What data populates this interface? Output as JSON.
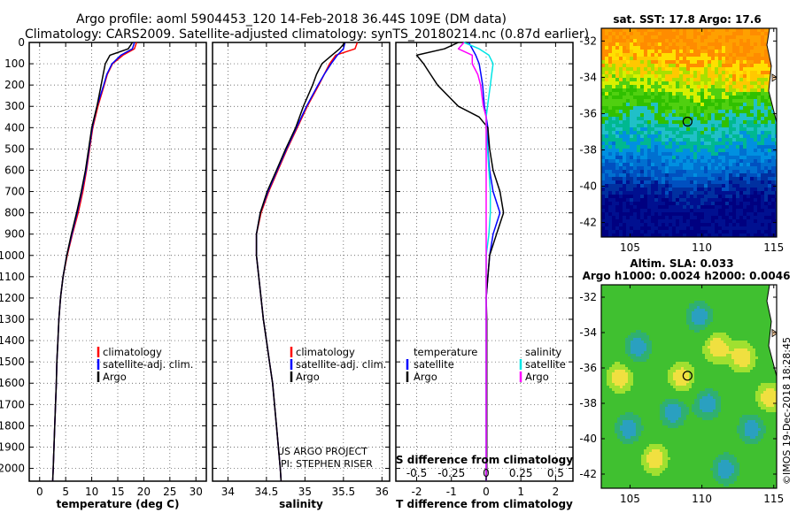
{
  "header": {
    "title_line1": "Argo profile: aoml 5904453_120 14-Feb-2018 36.44S 109E (DM data)",
    "title_line2": "Climatology: CARS2009. Satellite-adjusted climatology: synTS_20180214.nc (0.87d earlier)"
  },
  "colors": {
    "climatology": "#ff0000",
    "satellite": "#0000ff",
    "argo": "#000000",
    "s_satellite": "#00e5e5",
    "s_argo": "#ff00ff"
  },
  "chart_data": [
    {
      "type": "line",
      "id": "temperature",
      "xlabel": "temperature (deg C)",
      "xlim": [
        -2,
        32
      ],
      "ylim": [
        2060,
        0
      ],
      "xticks": [
        "0",
        "5",
        "10",
        "15",
        "20",
        "25",
        "30"
      ],
      "xtick_values": [
        0,
        5,
        10,
        15,
        20,
        25,
        30
      ],
      "yticks": [
        "0",
        "100",
        "200",
        "300",
        "400",
        "500",
        "600",
        "700",
        "800",
        "900",
        "1000",
        "1100",
        "1200",
        "1300",
        "1400",
        "1500",
        "1600",
        "1700",
        "1800",
        "1900",
        "2000"
      ],
      "depth": [
        0,
        30,
        60,
        100,
        150,
        200,
        300,
        400,
        500,
        600,
        700,
        800,
        900,
        1000,
        1100,
        1200,
        1300,
        1400,
        1500,
        1600,
        1800,
        2000,
        2060
      ],
      "series": [
        {
          "name": "climatology",
          "values": [
            18.6,
            18.2,
            16.0,
            14.0,
            13.0,
            12.4,
            11.2,
            10.2,
            9.6,
            9.0,
            8.3,
            7.4,
            6.3,
            5.3,
            4.5,
            4.0,
            3.7,
            3.5,
            3.3,
            3.2,
            2.9,
            2.6,
            2.5
          ]
        },
        {
          "name": "satellite-adj. clim.",
          "values": [
            18.2,
            17.8,
            15.6,
            13.9,
            12.9,
            12.3,
            11.0,
            10.1,
            9.5,
            8.9,
            8.1,
            7.2,
            6.2,
            5.2,
            4.5,
            4.0,
            3.7,
            3.5,
            3.3,
            3.2,
            2.9,
            2.6,
            2.5
          ]
        },
        {
          "name": "Argo",
          "values": [
            17.8,
            17.0,
            13.5,
            12.6,
            12.2,
            11.8,
            11.0,
            10.0,
            9.4,
            8.8,
            8.0,
            7.1,
            6.1,
            5.2,
            4.5,
            4.0,
            3.7,
            3.5,
            3.3,
            3.2,
            2.9,
            2.6,
            2.5
          ]
        }
      ],
      "legend": [
        "climatology",
        "satellite-adj. clim.",
        "Argo"
      ]
    },
    {
      "type": "line",
      "id": "salinity",
      "xlabel": "salinity",
      "xlim": [
        33.8,
        36.1
      ],
      "ylim": [
        2060,
        0
      ],
      "xticks": [
        "34",
        "34.5",
        "35",
        "35.5",
        "36"
      ],
      "xtick_values": [
        34,
        34.5,
        35,
        35.5,
        36
      ],
      "depth": [
        0,
        30,
        60,
        100,
        150,
        200,
        300,
        400,
        500,
        600,
        700,
        800,
        900,
        1000,
        1100,
        1200,
        1300,
        1400,
        1500,
        1600,
        1800,
        2000,
        2060
      ],
      "series": [
        {
          "name": "climatology",
          "values": [
            35.68,
            35.65,
            35.4,
            35.32,
            35.25,
            35.18,
            35.03,
            34.9,
            34.77,
            34.65,
            34.53,
            34.43,
            34.37,
            34.37,
            34.4,
            34.43,
            34.46,
            34.5,
            34.54,
            34.58,
            34.63,
            34.68,
            34.69
          ]
        },
        {
          "name": "satellite-adj. clim.",
          "values": [
            35.52,
            35.5,
            35.42,
            35.34,
            35.25,
            35.17,
            35.02,
            34.89,
            34.76,
            34.64,
            34.52,
            34.42,
            34.37,
            34.37,
            34.4,
            34.43,
            34.46,
            34.5,
            34.54,
            34.58,
            34.63,
            34.68,
            34.69
          ]
        },
        {
          "name": "Argo",
          "values": [
            35.52,
            35.45,
            35.35,
            35.22,
            35.15,
            35.1,
            34.98,
            34.88,
            34.75,
            34.63,
            34.51,
            34.42,
            34.37,
            34.37,
            34.4,
            34.43,
            34.46,
            34.5,
            34.54,
            34.58,
            34.63,
            34.68,
            34.69
          ]
        }
      ],
      "legend": [
        "climatology",
        "satellite-adj. clim.",
        "Argo"
      ],
      "annotations": [
        "US ARGO PROJECT",
        "PI: STEPHEN RISER"
      ]
    },
    {
      "type": "line",
      "id": "difference",
      "xlabel": "T difference from climatology",
      "top_xlabel": "S difference from climatology",
      "xlim": [
        -2.6,
        2.5
      ],
      "ylim": [
        2060,
        0
      ],
      "xticks": [
        "-2",
        "-1",
        "0",
        "1",
        "2"
      ],
      "xtick_values": [
        -2,
        -1,
        0,
        1,
        2
      ],
      "sticks": [
        "-0.5",
        "-0.25",
        "0",
        "0.25",
        "0.5"
      ],
      "stick_values": [
        -0.5,
        -0.25,
        0,
        0.25,
        0.5
      ],
      "depth": [
        0,
        30,
        60,
        100,
        150,
        200,
        300,
        350,
        400,
        500,
        600,
        700,
        800,
        900,
        1000,
        1100,
        1200,
        1300,
        1400,
        1500,
        1600,
        1800,
        2000,
        2060
      ],
      "series": [
        {
          "name": "temperature satellite",
          "values": [
            -0.5,
            -0.4,
            -0.3,
            -0.2,
            -0.15,
            -0.1,
            -0.05,
            0,
            0.05,
            0.05,
            0.1,
            0.2,
            0.4,
            0.2,
            0.1,
            0.05,
            0,
            0,
            0,
            0,
            0,
            0,
            0,
            0
          ]
        },
        {
          "name": "temperature Argo",
          "values": [
            -0.8,
            -1.2,
            -2.0,
            -1.8,
            -1.6,
            -1.4,
            -0.8,
            -0.2,
            0.05,
            0.1,
            0.2,
            0.4,
            0.5,
            0.3,
            0.1,
            0.05,
            0,
            0.02,
            0.02,
            0.02,
            0.02,
            0.02,
            0.02,
            0
          ]
        },
        {
          "name": "salinity satellite",
          "values": [
            -0.16,
            -0.05,
            0.02,
            0.05,
            0.04,
            0.03,
            0.01,
            0.0,
            0.0,
            0.01,
            0.02,
            0.03,
            0.03,
            0.02,
            0.0,
            0.0,
            0.0,
            0.0,
            0.0,
            0.0,
            0.0,
            0.0,
            0.0,
            0.0
          ]
        },
        {
          "name": "salinity Argo",
          "values": [
            -0.16,
            -0.2,
            -0.1,
            -0.1,
            -0.06,
            -0.04,
            -0.02,
            0.0,
            0.0,
            0.0,
            0.0,
            0.0,
            0.0,
            0.0,
            0.0,
            0.0,
            0.0,
            0.0,
            0.0,
            0.0,
            0.0,
            0.0,
            0.0,
            0.0
          ]
        }
      ],
      "legend_left": {
        "heading": "temperature",
        "items": [
          "satellite",
          "Argo"
        ]
      },
      "legend_right": {
        "heading": "salinity",
        "items": [
          "satellite",
          "Argo"
        ]
      }
    },
    {
      "type": "heatmap",
      "id": "sst_map",
      "title": "sat. SST: 17.8 Argo: 17.6",
      "xlim": [
        103,
        115.2
      ],
      "ylim": [
        -42.8,
        -31.3
      ],
      "xticks": [
        "105",
        "110",
        "115"
      ],
      "xtick_values": [
        105,
        110,
        115
      ],
      "yticks": [
        "-32",
        "-34",
        "-36",
        "-38",
        "-40",
        "-42"
      ],
      "ytick_values": [
        -32,
        -34,
        -36,
        -38,
        -40,
        -42
      ],
      "float_position": [
        109,
        -36.44
      ]
    },
    {
      "type": "heatmap",
      "id": "sla_map",
      "title_line1": "Altim. SLA: 0.033",
      "title_line2": "Argo h1000: 0.0024 h2000: 0.0046",
      "xlim": [
        103,
        115.2
      ],
      "ylim": [
        -42.8,
        -31.3
      ],
      "xticks": [
        "105",
        "110",
        "115"
      ],
      "xtick_values": [
        105,
        110,
        115
      ],
      "yticks": [
        "-32",
        "-34",
        "-36",
        "-38",
        "-40",
        "-42"
      ],
      "ytick_values": [
        -32,
        -34,
        -36,
        -38,
        -40,
        -42
      ],
      "float_position": [
        109,
        -36.44
      ]
    }
  ],
  "credit": "©IMOS 19-Dec-2018 18:28:45"
}
